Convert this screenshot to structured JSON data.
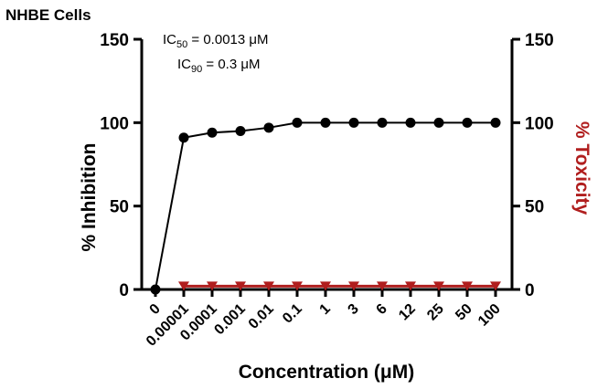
{
  "panel_title": "NHBE Cells",
  "colors": {
    "inhibition": "#000000",
    "toxicity": "#b01e1e"
  },
  "annotations": [
    {
      "prefix": "IC",
      "sub": "50",
      "suffix": " = 0.0013 μM"
    },
    {
      "prefix": "IC",
      "sub": "90",
      "suffix": " = 0.3 μM"
    }
  ],
  "chart_data": {
    "type": "line",
    "categories": [
      "0",
      "0.00001",
      "0.0001",
      "0.001",
      "0.01",
      "0.1",
      "1",
      "3",
      "6",
      "12",
      "25",
      "50",
      "100"
    ],
    "xlabel": "Concentration (μM)",
    "ylabel_left": "% Inhibition",
    "ylabel_right": "% Toxicity",
    "ylim_left": [
      0,
      150
    ],
    "ylim_right": [
      0,
      150
    ],
    "yticks_left": [
      0,
      50,
      100,
      150
    ],
    "yticks_right": [
      0,
      50,
      100,
      150
    ],
    "series": [
      {
        "axis": "left",
        "marker": "circle",
        "color": "#000000",
        "values": [
          0,
          91,
          94,
          95,
          97,
          100,
          100,
          100,
          100,
          100,
          100,
          100,
          100
        ]
      },
      {
        "axis": "right",
        "marker": "triangle-down",
        "color": "#b01e1e",
        "values": [
          null,
          2,
          2,
          2,
          2,
          2,
          2,
          2,
          2,
          2,
          2,
          2,
          2
        ]
      }
    ],
    "grid": false
  }
}
